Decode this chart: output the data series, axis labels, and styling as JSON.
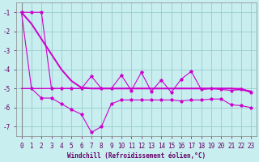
{
  "xlabel": "Windchill (Refroidissement éolien,°C)",
  "background_color": "#c8eef0",
  "grid_color": "#99cccc",
  "line_color": "#cc00cc",
  "line_color2": "#aa00aa",
  "x_values": [
    0,
    1,
    2,
    3,
    4,
    5,
    6,
    7,
    8,
    9,
    10,
    11,
    12,
    13,
    14,
    15,
    16,
    17,
    18,
    19,
    20,
    21,
    22,
    23
  ],
  "y_smooth": [
    -1.0,
    -1.6,
    -2.4,
    -3.2,
    -4.0,
    -4.6,
    -4.95,
    -5.0,
    -5.0,
    -5.0,
    -5.0,
    -5.0,
    -5.0,
    -5.0,
    -5.0,
    -5.0,
    -5.0,
    -5.0,
    -5.0,
    -5.0,
    -5.0,
    -5.0,
    -5.05,
    -5.15
  ],
  "y_flat": [
    -5.0,
    -5.0,
    -5.0,
    -5.0,
    -5.0,
    -5.0,
    -5.0,
    -5.0,
    -5.0,
    -5.0,
    -5.0,
    -5.0,
    -5.0,
    -5.0,
    -5.0,
    -5.0,
    -5.0,
    -5.0,
    -5.0,
    -5.0,
    -5.0,
    -5.0,
    -5.0,
    -5.2
  ],
  "y_upper": [
    -1.0,
    -1.0,
    -1.0,
    -5.0,
    -5.0,
    -5.0,
    -5.0,
    -4.35,
    -5.0,
    -5.0,
    -4.3,
    -5.1,
    -4.15,
    -5.15,
    -4.55,
    -5.2,
    -4.5,
    -4.1,
    -5.05,
    -5.0,
    -5.05,
    -5.1,
    -5.05,
    -5.2
  ],
  "y_lower": [
    -1.0,
    -5.0,
    -5.5,
    -5.5,
    -5.8,
    -6.1,
    -6.35,
    -7.3,
    -7.0,
    -5.8,
    -5.6,
    -5.6,
    -5.6,
    -5.6,
    -5.6,
    -5.6,
    -5.65,
    -5.6,
    -5.6,
    -5.55,
    -5.55,
    -5.85,
    -5.9,
    -6.0
  ],
  "ylim": [
    -7.5,
    -0.5
  ],
  "xlim": [
    -0.5,
    23.5
  ],
  "yticks": [
    -7,
    -6,
    -5,
    -4,
    -3,
    -2,
    -1
  ],
  "xticks": [
    0,
    1,
    2,
    3,
    4,
    5,
    6,
    7,
    8,
    9,
    10,
    11,
    12,
    13,
    14,
    15,
    16,
    17,
    18,
    19,
    20,
    21,
    22,
    23
  ],
  "xlabel_fontsize": 5.5,
  "tick_fontsize": 5.5
}
